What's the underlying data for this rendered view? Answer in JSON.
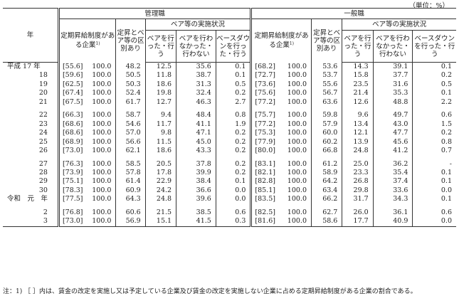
{
  "unit": "（単位：%）",
  "header": {
    "year": "年",
    "management": "管理職",
    "general": "一般職",
    "regular_raise": "定期昇給制度がある企業",
    "note_mark": "1)",
    "distinction": "定昇とベア等の区別あり",
    "base_up_status": "ベア等の実施状況",
    "did_base_up": "ベアを行った・行う",
    "no_base_up": "ベアを行わなかった・行わない",
    "base_down": "ベースダウンを行った・行う"
  },
  "rows": [
    {
      "year": "平成 17 年",
      "m_br": "[55.6]",
      "m_100": "100.0",
      "m_dist": "48.2",
      "m_up": "12.5",
      "m_no": "35.6",
      "m_down": "0.1",
      "g_br": "[68.2]",
      "g_100": "100.0",
      "g_dist": "53.6",
      "g_up": "14.3",
      "g_no": "39.1",
      "g_down": "0.1"
    },
    {
      "year": "18",
      "m_br": "[59.6]",
      "m_100": "100.0",
      "m_dist": "50.5",
      "m_up": "11.8",
      "m_no": "38.7",
      "m_down": "0.1",
      "g_br": "[72.7]",
      "g_100": "100.0",
      "g_dist": "53.7",
      "g_up": "15.8",
      "g_no": "37.7",
      "g_down": "0.2"
    },
    {
      "year": "19",
      "m_br": "[62.5]",
      "m_100": "100.0",
      "m_dist": "50.3",
      "m_up": "18.6",
      "m_no": "31.3",
      "m_down": "0.5",
      "g_br": "[73.6]",
      "g_100": "100.0",
      "g_dist": "55.6",
      "g_up": "23.5",
      "g_no": "31.6",
      "g_down": "0.5"
    },
    {
      "year": "20",
      "m_br": "[67.4]",
      "m_100": "100.0",
      "m_dist": "52.4",
      "m_up": "19.8",
      "m_no": "32.4",
      "m_down": "0.2",
      "g_br": "[75.6]",
      "g_100": "100.0",
      "g_dist": "56.7",
      "g_up": "21.4",
      "g_no": "35.3",
      "g_down": "0.1"
    },
    {
      "year": "21",
      "m_br": "[67.5]",
      "m_100": "100.0",
      "m_dist": "61.7",
      "m_up": "12.7",
      "m_no": "46.3",
      "m_down": "2.7",
      "g_br": "[77.2]",
      "g_100": "100.0",
      "g_dist": "63.6",
      "g_up": "12.6",
      "g_no": "48.8",
      "g_down": "2.2"
    },
    {
      "year": "22",
      "m_br": "[66.3]",
      "m_100": "100.0",
      "m_dist": "58.7",
      "m_up": "9.4",
      "m_no": "48.4",
      "m_down": "0.8",
      "g_br": "[75.7]",
      "g_100": "100.0",
      "g_dist": "59.8",
      "g_up": "9.6",
      "g_no": "49.7",
      "g_down": "0.6",
      "gap": true
    },
    {
      "year": "23",
      "m_br": "[68.6]",
      "m_100": "100.0",
      "m_dist": "54.6",
      "m_up": "11.7",
      "m_no": "41.1",
      "m_down": "1.9",
      "g_br": "[77.2]",
      "g_100": "100.0",
      "g_dist": "57.9",
      "g_up": "13.4",
      "g_no": "43.0",
      "g_down": "1.5"
    },
    {
      "year": "24",
      "m_br": "[68.6]",
      "m_100": "100.0",
      "m_dist": "57.0",
      "m_up": "9.8",
      "m_no": "47.1",
      "m_down": "0.2",
      "g_br": "[75.3]",
      "g_100": "100.0",
      "g_dist": "60.0",
      "g_up": "12.1",
      "g_no": "47.7",
      "g_down": "0.2"
    },
    {
      "year": "25",
      "m_br": "[68.9]",
      "m_100": "100.0",
      "m_dist": "56.6",
      "m_up": "11.5",
      "m_no": "45.0",
      "m_down": "0.2",
      "g_br": "[77.9]",
      "g_100": "100.0",
      "g_dist": "60.2",
      "g_up": "13.9",
      "g_no": "45.6",
      "g_down": "0.8"
    },
    {
      "year": "26",
      "m_br": "[73.0]",
      "m_100": "100.0",
      "m_dist": "62.1",
      "m_up": "18.6",
      "m_no": "43.3",
      "m_down": "0.2",
      "g_br": "[80.0]",
      "g_100": "100.0",
      "g_dist": "66.8",
      "g_up": "24.8",
      "g_no": "41.2",
      "g_down": "0.7"
    },
    {
      "year": "27",
      "m_br": "[76.3]",
      "m_100": "100.0",
      "m_dist": "58.5",
      "m_up": "20.5",
      "m_no": "37.8",
      "m_down": "0.2",
      "g_br": "[83.1]",
      "g_100": "100.0",
      "g_dist": "61.2",
      "g_up": "25.0",
      "g_no": "36.2",
      "g_down": "-",
      "gap": true
    },
    {
      "year": "28",
      "m_br": "[73.9]",
      "m_100": "100.0",
      "m_dist": "57.8",
      "m_up": "17.8",
      "m_no": "39.9",
      "m_down": "0.2",
      "g_br": "[82.1]",
      "g_100": "100.0",
      "g_dist": "58.9",
      "g_up": "23.3",
      "g_no": "35.4",
      "g_down": "0.1"
    },
    {
      "year": "29",
      "m_br": "[75.1]",
      "m_100": "100.0",
      "m_dist": "61.4",
      "m_up": "22.9",
      "m_no": "38.4",
      "m_down": "0.1",
      "g_br": "[82.8]",
      "g_100": "100.0",
      "g_dist": "64.2",
      "g_up": "26.8",
      "g_no": "37.4",
      "g_down": "0.1"
    },
    {
      "year": "30",
      "m_br": "[78.3]",
      "m_100": "100.0",
      "m_dist": "60.9",
      "m_up": "24.2",
      "m_no": "36.6",
      "m_down": "0.0",
      "g_br": "[85.1]",
      "g_100": "100.0",
      "g_dist": "63.4",
      "g_up": "29.8",
      "g_no": "33.6",
      "g_down": "0.0"
    },
    {
      "year": "令和　元　年",
      "m_br": "[77.5]",
      "m_100": "100.0",
      "m_dist": "64.3",
      "m_up": "24.8",
      "m_no": "39.6",
      "m_down": "0.0",
      "g_br": "[83.5]",
      "g_100": "100.0",
      "g_dist": "66.2",
      "g_up": "31.7",
      "g_no": "34.3",
      "g_down": "0.1"
    },
    {
      "year": "2",
      "m_br": "[76.8]",
      "m_100": "100.0",
      "m_dist": "60.6",
      "m_up": "21.5",
      "m_no": "38.5",
      "m_down": "0.6",
      "g_br": "[82.5]",
      "g_100": "100.0",
      "g_dist": "62.7",
      "g_up": "26.0",
      "g_no": "36.1",
      "g_down": "0.6",
      "gap": true
    },
    {
      "year": "3",
      "m_br": "[73.0]",
      "m_100": "100.0",
      "m_dist": "56.9",
      "m_up": "15.1",
      "m_no": "41.5",
      "m_down": "0.3",
      "g_br": "[81.6]",
      "g_100": "100.0",
      "g_dist": "58.6",
      "g_up": "17.7",
      "g_no": "40.9",
      "g_down": "0.0"
    }
  ],
  "note": "注：1) ［ ］内は、賃金の改定を実施し又は予定している企業及び賃金の改定を実施しない企業に占める定期昇給制度がある企業の割合である。"
}
